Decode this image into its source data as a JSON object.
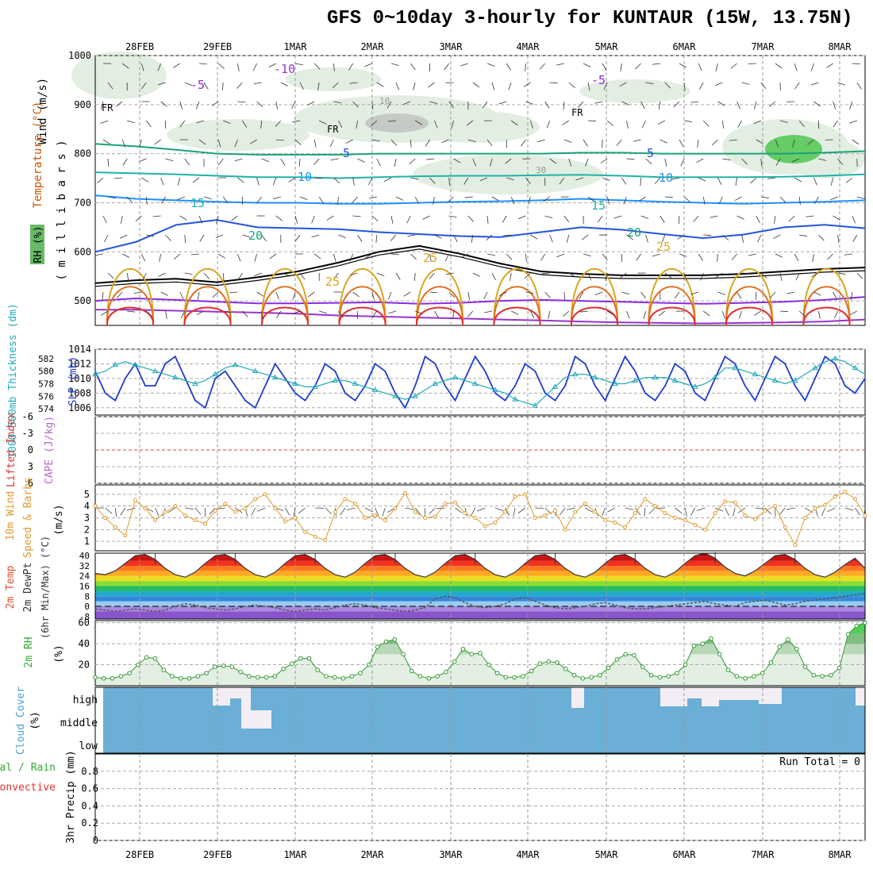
{
  "title": "GFS 0~10day 3-hourly for KUNTAUR (15W, 13.75N)",
  "chart_data": [
    {
      "id": "upper-air",
      "type": "line",
      "title": "Wind (m/s), Temperature (°C), RH (%)",
      "ylabel": "millibars",
      "label_wind": "Wind (m/s)",
      "label_temp": "Temperature (°C)",
      "label_rh": "RH (%)",
      "label_mb": "( m i l l i b a r s )",
      "dates": [
        "28FEB",
        "29FEB",
        "1MAR",
        "2MAR",
        "3MAR",
        "4MAR",
        "5MAR",
        "6MAR",
        "7MAR",
        "8MAR"
      ],
      "yticks": [
        500,
        600,
        700,
        800,
        900,
        1000
      ],
      "ylim": [
        450,
        1000
      ],
      "contour_labels": [
        "-10",
        "-5",
        "-5",
        "FR",
        "FR",
        "FR",
        "5",
        "5",
        "10",
        "10",
        "15",
        "15",
        "20",
        "20",
        "25",
        "25",
        "25",
        "10",
        "30"
      ],
      "isotherms": [
        {
          "name": "-10",
          "color": "#9933cc",
          "values": [
            482,
            482,
            480,
            478,
            476,
            474,
            470,
            468,
            466,
            464,
            462,
            460,
            458,
            456,
            455,
            454,
            455,
            456,
            458,
            462
          ]
        },
        {
          "name": "-5",
          "color": "#8a2be2",
          "values": [
            500,
            505,
            502,
            498,
            495,
            495,
            496,
            497,
            494,
            496,
            500,
            502,
            500,
            498,
            496,
            494,
            496,
            498,
            502,
            508
          ]
        },
        {
          "name": "FR",
          "color": "#000000",
          "values": [
            536,
            542,
            545,
            538,
            548,
            560,
            578,
            600,
            612,
            596,
            576,
            560,
            555,
            552,
            552,
            552,
            555,
            560,
            565,
            568
          ]
        },
        {
          "name": "5",
          "color": "#2255dd",
          "values": [
            600,
            620,
            655,
            665,
            650,
            648,
            646,
            640,
            636,
            632,
            630,
            640,
            650,
            645,
            636,
            628,
            635,
            650,
            655,
            648
          ]
        },
        {
          "name": "10",
          "color": "#1e90ff",
          "values": [
            715,
            708,
            705,
            702,
            700,
            700,
            698,
            698,
            700,
            702,
            703,
            705,
            708,
            705,
            702,
            700,
            698,
            700,
            702,
            705
          ]
        },
        {
          "name": "15",
          "color": "#20b2aa",
          "values": [
            762,
            760,
            758,
            755,
            752,
            752,
            750,
            752,
            754,
            755,
            755,
            756,
            757,
            755,
            752,
            752,
            752,
            753,
            755,
            758
          ]
        },
        {
          "name": "20",
          "color": "#1aa37a",
          "values": [
            820,
            815,
            808,
            800,
            798,
            798,
            798,
            800,
            800,
            800,
            800,
            800,
            802,
            802,
            800,
            800,
            800,
            800,
            802,
            805
          ]
        }
      ]
    },
    {
      "id": "slp-thickness",
      "type": "line",
      "label_thickness": "1000-500mb Thickness (dm)",
      "label_slp": "SLP (mb)",
      "left_ticks": [
        574,
        576,
        578,
        580,
        582
      ],
      "right_ticks": [
        1006,
        1008,
        1010,
        1012,
        1014
      ],
      "slp_lim": [
        1005,
        1014
      ],
      "slp": [
        1011,
        1008,
        1007,
        1010,
        1012,
        1009,
        1009,
        1012,
        1013,
        1010,
        1007,
        1006,
        1010,
        1011,
        1009,
        1007,
        1006,
        1009,
        1012,
        1010,
        1008,
        1007,
        1009,
        1012,
        1011,
        1008,
        1007,
        1009,
        1012,
        1011,
        1008,
        1006,
        1009,
        1013,
        1012,
        1009,
        1007,
        1010,
        1013,
        1011,
        1008,
        1007,
        1009,
        1012,
        1011,
        1008,
        1007,
        1009,
        1013,
        1012,
        1009,
        1007,
        1010,
        1013,
        1011,
        1008,
        1007,
        1009,
        1012,
        1011,
        1008,
        1007,
        1010,
        1013,
        1012,
        1009,
        1007,
        1010,
        1013,
        1012,
        1009,
        1007,
        1010,
        1013,
        1012,
        1009,
        1008,
        1010
      ],
      "thickness": [
        579.5,
        580,
        581,
        581.5,
        581,
        580.5,
        580,
        579.5,
        579,
        578.5,
        578,
        578.5,
        579.5,
        580.5,
        581,
        580.5,
        580,
        579.5,
        579,
        578.5,
        578,
        577.5,
        577.5,
        578,
        578.5,
        578.5,
        578,
        577.5,
        577,
        576.5,
        576,
        575.5,
        576,
        577,
        578,
        578.5,
        579,
        578.5,
        578,
        577.5,
        577,
        576.5,
        575.5,
        575,
        574.5,
        576,
        577.5,
        579,
        579.5,
        579.5,
        579,
        578.5,
        578,
        578,
        578.5,
        579,
        579,
        579,
        578.5,
        578,
        577.5,
        578,
        579,
        580.5,
        580.5,
        580,
        579.5,
        579,
        578.5,
        578,
        578.5,
        579.5,
        580.5,
        581.5,
        582,
        581.5,
        580.5,
        579.5
      ]
    },
    {
      "id": "cape-li",
      "type": "line",
      "label_li": "Lifted Index",
      "label_cape": "CAPE (J/kg)",
      "yticks": [
        -6,
        -3,
        0,
        3,
        6
      ],
      "ytick_labels": [
        "6",
        "3",
        "0",
        "-3",
        "-6"
      ],
      "zero_value": 0
    },
    {
      "id": "wind10m",
      "type": "line",
      "label_a": "10m Wind",
      "label_b": "Speed & Barbs",
      "label_c": "(m/s)",
      "yticks": [
        1,
        2,
        3,
        4,
        5
      ],
      "ylim": [
        0.2,
        5.8
      ],
      "values": [
        4.0,
        3.0,
        2.2,
        1.5,
        4.5,
        3.8,
        2.8,
        3.5,
        4.0,
        3.2,
        2.8,
        2.5,
        3.6,
        4.2,
        3.5,
        3.8,
        4.6,
        5.0,
        3.8,
        2.7,
        3.0,
        1.8,
        1.4,
        1.1,
        3.5,
        4.6,
        4.2,
        3.0,
        3.2,
        2.8,
        3.8,
        5.1,
        3.5,
        3.0,
        3.1,
        4.2,
        4.3,
        3.4,
        3.0,
        2.3,
        2.6,
        3.5,
        4.8,
        5.0,
        3.0,
        3.2,
        3.6,
        2.0,
        3.5,
        4.2,
        3.5,
        2.8,
        2.6,
        2.2,
        3.4,
        4.6,
        4.0,
        3.4,
        3.0,
        2.8,
        2.4,
        2.0,
        3.4,
        4.4,
        4.3,
        3.2,
        2.9,
        3.6,
        4.0,
        2.2,
        0.7,
        3.0,
        3.8,
        4.1,
        4.8,
        5.2,
        4.6,
        3.2
      ]
    },
    {
      "id": "temp2m",
      "type": "area",
      "label_a": "2m Temp",
      "label_b": "2m DewPt",
      "label_c": "(6hr Min/Max) (°C)",
      "yticks": [
        -8,
        0,
        8,
        16,
        24,
        32,
        40
      ],
      "ylim": [
        -10,
        42
      ],
      "temp": [
        26,
        25,
        28,
        34,
        40,
        41,
        37,
        30,
        25,
        23,
        27,
        34,
        40,
        41,
        37,
        30,
        25,
        23,
        27,
        34,
        40,
        41,
        37,
        30,
        25,
        23,
        27,
        34,
        40,
        41,
        37,
        30,
        25,
        23,
        27,
        34,
        40,
        41,
        37,
        30,
        25,
        23,
        27,
        34,
        40,
        41,
        37,
        30,
        25,
        23,
        27,
        34,
        40,
        41,
        37,
        30,
        25,
        23,
        27,
        34,
        40,
        42,
        38,
        31,
        26,
        24,
        28,
        34,
        40,
        41,
        37,
        30,
        25,
        23,
        27,
        33,
        38,
        30
      ],
      "dewpt": [
        -2,
        -3,
        -4,
        -3,
        -2,
        -3,
        -4,
        -3,
        0,
        2,
        1,
        -1,
        -2,
        -3,
        -2,
        0,
        1,
        0,
        -1,
        -3,
        -4,
        -3,
        -2,
        -3,
        -1,
        1,
        2,
        1,
        -1,
        -2,
        -3,
        -4,
        -3,
        -1,
        6,
        8,
        7,
        3,
        0,
        -1,
        0,
        2,
        6,
        7,
        4,
        1,
        -1,
        -2,
        -1,
        0,
        2,
        3,
        1,
        -1,
        -2,
        -2,
        -1,
        0,
        1,
        2,
        3,
        4,
        2,
        1,
        0,
        3,
        4,
        5,
        3,
        1,
        2,
        4,
        5,
        6,
        7,
        8,
        9,
        10
      ]
    },
    {
      "id": "rh2m",
      "type": "area",
      "label_a": "2m RH",
      "label_b": "(%)",
      "yticks": [
        20,
        40,
        60
      ],
      "ylim": [
        0,
        62
      ],
      "values": [
        8,
        7,
        7,
        9,
        12,
        20,
        27,
        26,
        15,
        9,
        7,
        7,
        9,
        12,
        18,
        19,
        18,
        13,
        9,
        8,
        8,
        9,
        16,
        21,
        26,
        26,
        15,
        9,
        8,
        7,
        9,
        12,
        20,
        37,
        42,
        44,
        30,
        14,
        9,
        7,
        9,
        13,
        23,
        35,
        30,
        31,
        20,
        12,
        8,
        8,
        9,
        14,
        21,
        23,
        22,
        16,
        10,
        7,
        8,
        10,
        17,
        25,
        30,
        29,
        18,
        10,
        8,
        9,
        12,
        20,
        38,
        40,
        45,
        30,
        15,
        9,
        7,
        9,
        12,
        22,
        37,
        44,
        35,
        18,
        10,
        9,
        10,
        17,
        49,
        57,
        60
      ]
    },
    {
      "id": "clouds",
      "type": "heatmap",
      "label_a": "Cloud Cover",
      "label_b": "(%)",
      "levels": [
        "high",
        "middle",
        "low"
      ]
    },
    {
      "id": "precip",
      "type": "bar",
      "label_a": "Total / Rain",
      "label_b": "Convective",
      "label_c": "3hr Precip (mm)",
      "run_total": "Run Total = 0",
      "yticks": [
        0,
        0.2,
        0.4,
        0.6,
        0.8
      ],
      "ylim": [
        0,
        1
      ],
      "values": []
    }
  ]
}
